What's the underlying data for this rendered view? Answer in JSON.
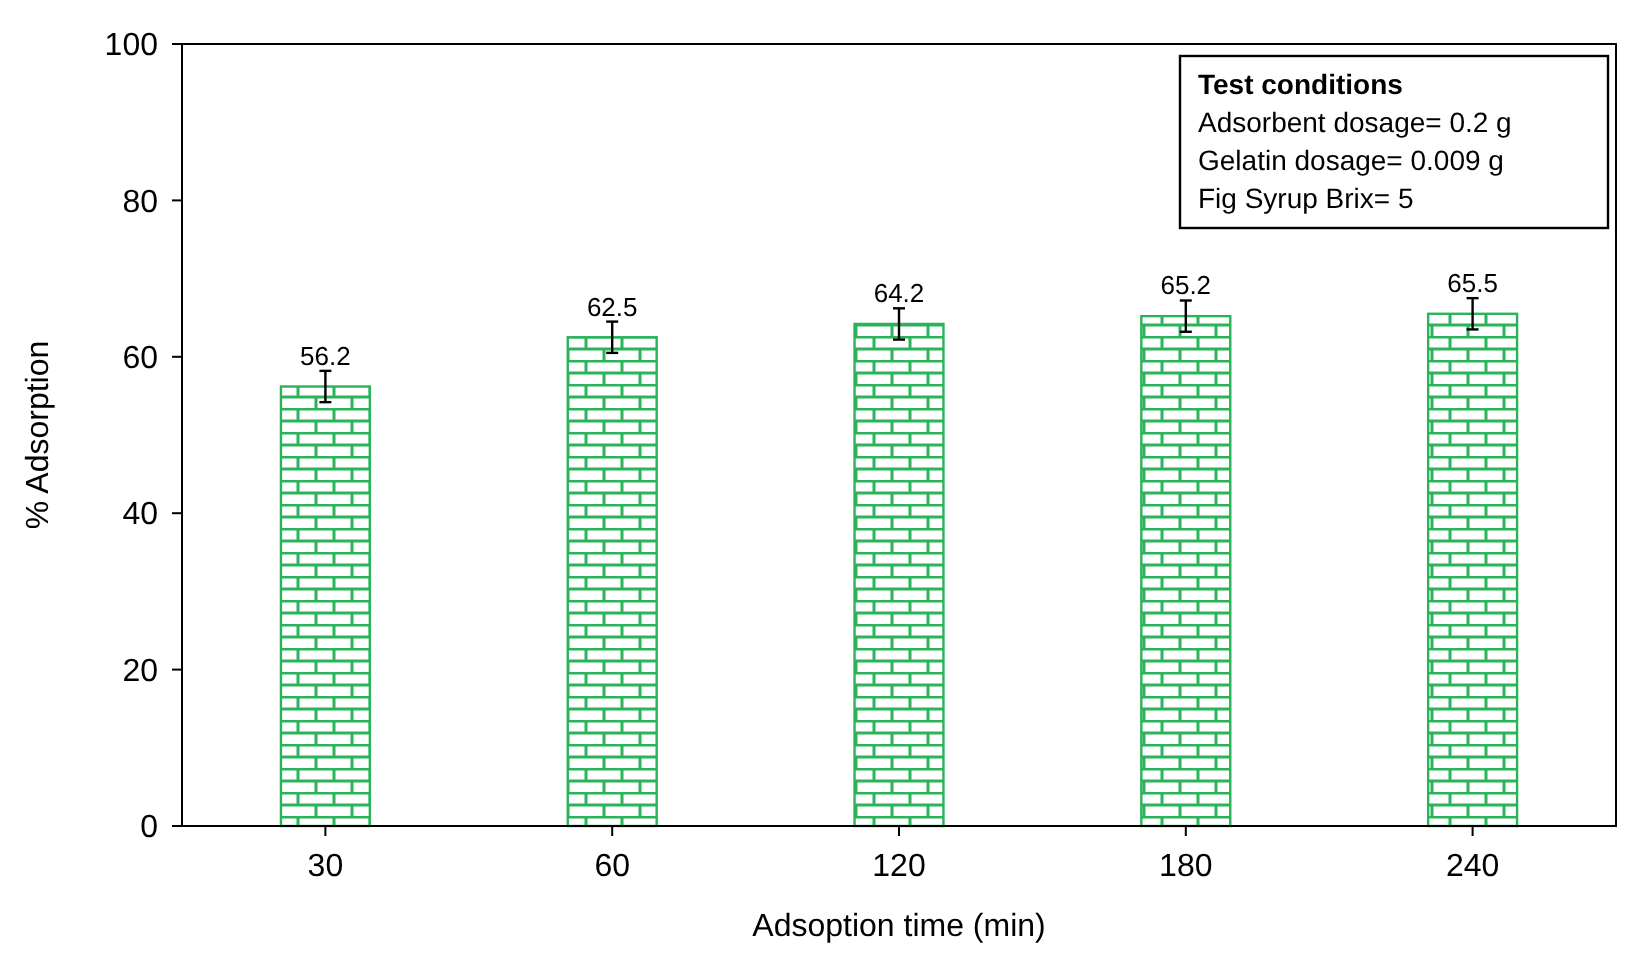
{
  "chart_data": {
    "type": "bar",
    "xlabel": "Adsoption time (min)",
    "ylabel": "% Adsorption",
    "categories": [
      "30",
      "60",
      "120",
      "180",
      "240"
    ],
    "values": [
      56.2,
      62.5,
      64.2,
      65.2,
      65.5
    ],
    "errors": [
      2,
      2,
      2,
      2,
      2
    ],
    "color": "#2bb35a",
    "data_labels": true,
    "ylim": [
      0,
      100
    ],
    "yticks": [
      0,
      20,
      40,
      60,
      80,
      100
    ],
    "grid": false,
    "annotations": [
      "Test conditions",
      "Adsorbent dosage= 0.2 g",
      "Gelatin dosage= 0.009 g",
      "Fig Syrup Brix= 5"
    ]
  }
}
